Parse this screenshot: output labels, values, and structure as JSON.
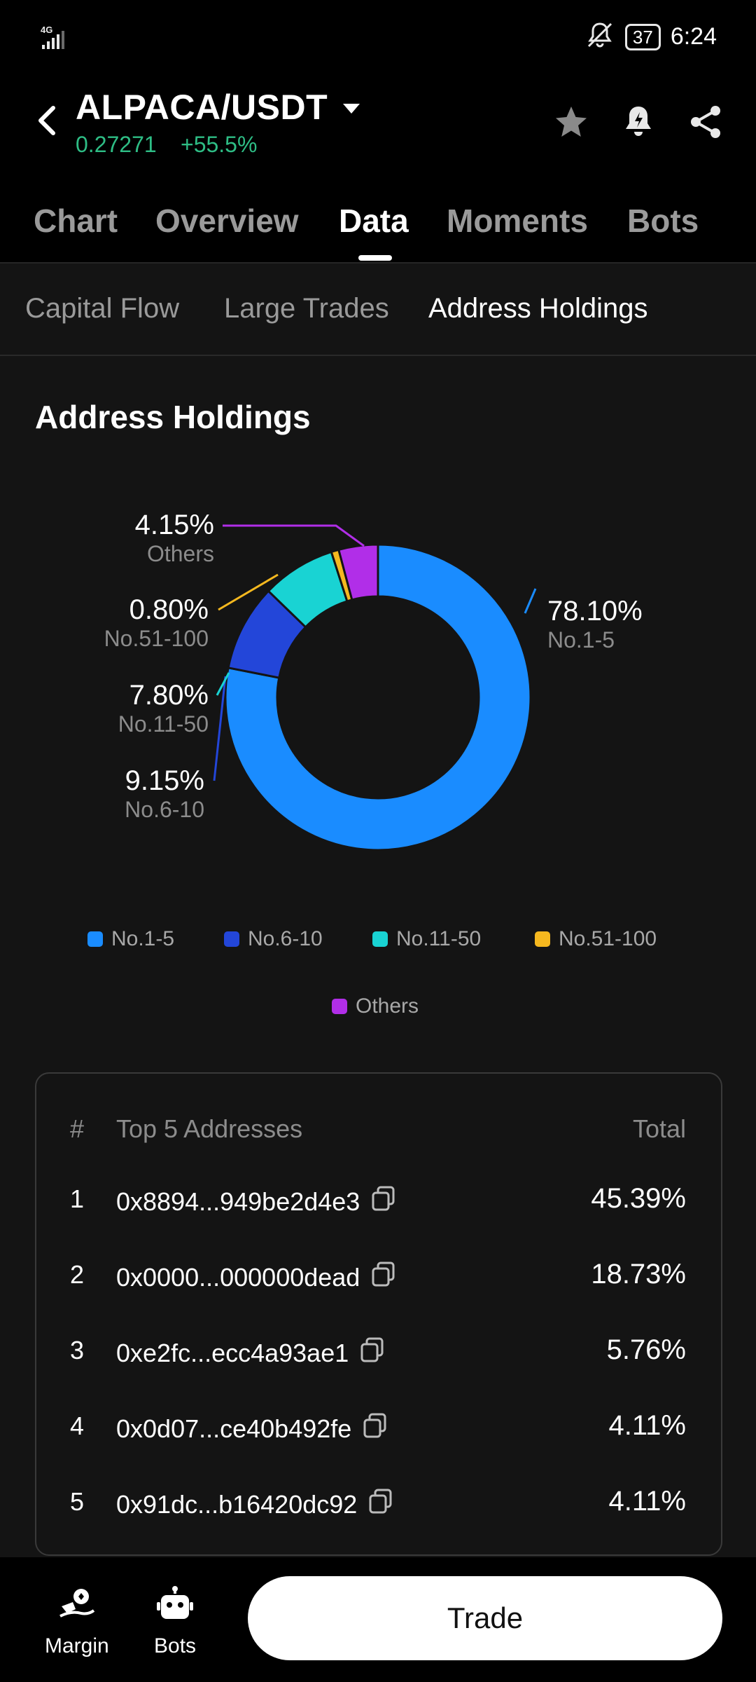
{
  "status": {
    "network": "4G",
    "battery": "37",
    "time": "6:24"
  },
  "header": {
    "pair": "ALPACA/USDT",
    "price": "0.27271",
    "change": "+55.5%"
  },
  "tabs": [
    "Chart",
    "Overview",
    "Data",
    "Moments",
    "Bots"
  ],
  "subtabs": [
    "Capital Flow",
    "Large Trades",
    "Address Holdings"
  ],
  "section_title": "Address Holdings",
  "chart_data": {
    "type": "pie",
    "categories": [
      "No.1-5",
      "No.6-10",
      "No.11-50",
      "No.51-100",
      "Others"
    ],
    "values": [
      78.1,
      9.15,
      7.8,
      0.8,
      4.15
    ],
    "labels": [
      "78.10%",
      "9.15%",
      "7.80%",
      "0.80%",
      "4.15%"
    ],
    "colors": [
      "#1a8cff",
      "#2346d9",
      "#19d3d3",
      "#f5b81f",
      "#b12ee8"
    ],
    "donut": true,
    "legend": "bottom"
  },
  "table": {
    "headers": {
      "rank": "#",
      "address": "Top 5 Addresses",
      "total": "Total"
    },
    "rows": [
      {
        "rank": "1",
        "address": "0x8894...949be2d4e3",
        "total": "45.39%"
      },
      {
        "rank": "2",
        "address": "0x0000...000000dead",
        "total": "18.73%"
      },
      {
        "rank": "3",
        "address": "0xe2fc...ecc4a93ae1",
        "total": "5.76%"
      },
      {
        "rank": "4",
        "address": "0x0d07...ce40b492fe",
        "total": "4.11%"
      },
      {
        "rank": "5",
        "address": "0x91dc...b16420dc92",
        "total": "4.11%"
      }
    ]
  },
  "bottom_nav": {
    "margin": "Margin",
    "bots": "Bots",
    "trade": "Trade"
  },
  "colors": {
    "accent_green": "#2ebd85",
    "background": "#141414",
    "bar": "#000000"
  },
  "icons": [
    "back-arrow-icon",
    "dropdown-caret-icon",
    "star-icon",
    "alert-bell-icon",
    "share-icon",
    "copy-icon",
    "margin-icon",
    "bot-icon"
  ]
}
